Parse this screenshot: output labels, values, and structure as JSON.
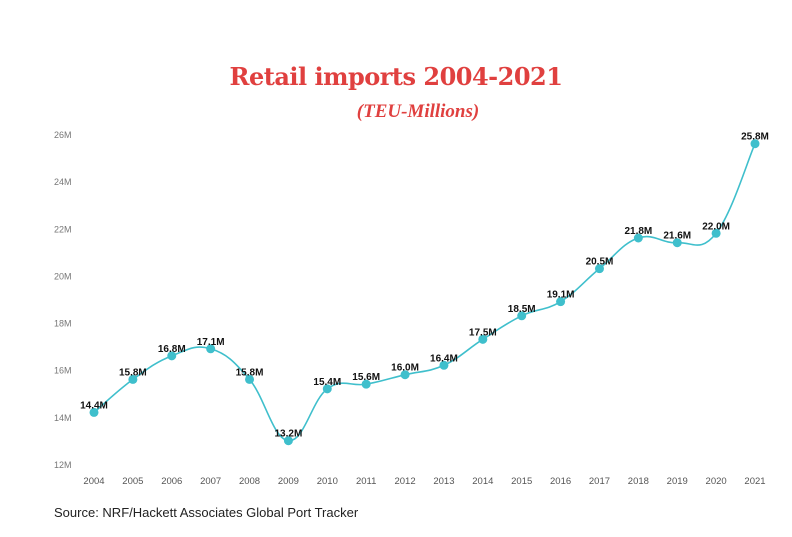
{
  "chart_data": {
    "type": "line",
    "title": "Retail imports 2004-2021",
    "subtitle": "(TEU-Millions)",
    "xlabel": "",
    "ylabel": "",
    "x": [
      "2004",
      "2005",
      "2006",
      "2007",
      "2008",
      "2009",
      "2010",
      "2011",
      "2012",
      "2013",
      "2014",
      "2015",
      "2016",
      "2017",
      "2018",
      "2019",
      "2020",
      "2021"
    ],
    "values": [
      14.4,
      15.8,
      16.8,
      17.1,
      15.8,
      13.2,
      15.4,
      15.6,
      16.0,
      16.4,
      17.5,
      18.5,
      19.1,
      20.5,
      21.8,
      21.6,
      22.0,
      25.8
    ],
    "data_labels": [
      "14.4M",
      "15.8M",
      "16.8M",
      "17.1M",
      "15.8M",
      "13.2M",
      "15.4M",
      "15.6M",
      "16.0M",
      "16.4M",
      "17.5M",
      "18.5M",
      "19.1M",
      "20.5M",
      "21.8M",
      "21.6M",
      "22.0M",
      "25.8M"
    ],
    "yticks": [
      12,
      14,
      16,
      18,
      20,
      22,
      24,
      26
    ],
    "ytick_labels": [
      "12M",
      "14M",
      "16M",
      "18M",
      "20M",
      "22M",
      "24M",
      "26M"
    ],
    "ylim": [
      12,
      26
    ],
    "grid": false,
    "line_color": "#3fbfcc",
    "title_color": "#e0403f"
  },
  "source": "Source: NRF/Hackett Associates Global Port Tracker"
}
